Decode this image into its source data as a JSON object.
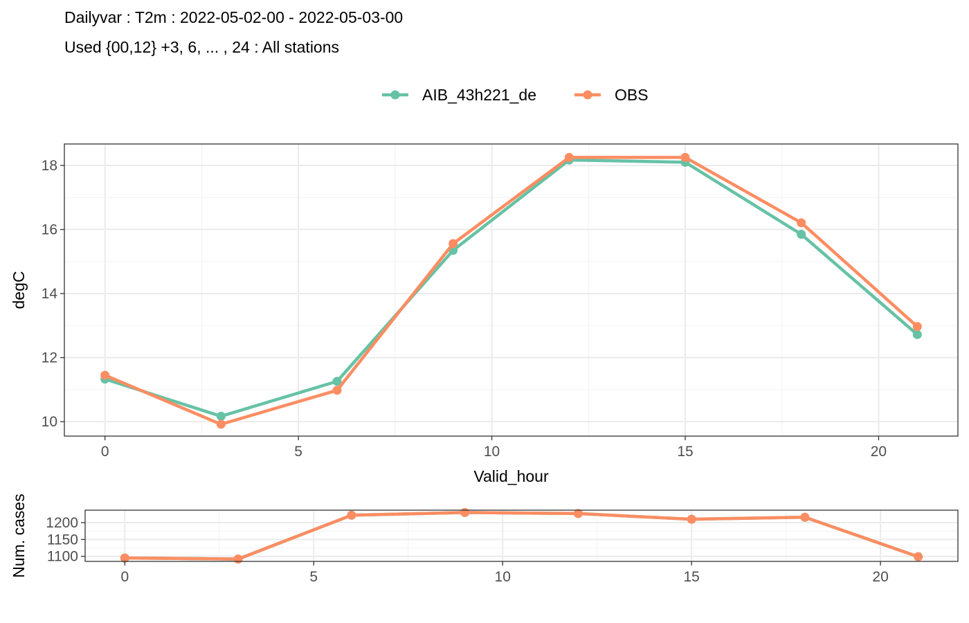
{
  "header": {
    "title": "Dailyvar : T2m : 2022-05-02-00 - 2022-05-03-00",
    "subtitle": "Used {00,12} +3, 6, ... , 24 : All stations"
  },
  "colors": {
    "AIB_43h221_de": "#66c2a5",
    "OBS": "#fc8d62"
  },
  "chart_data": [
    {
      "type": "line",
      "xlabel": "Valid_hour",
      "ylabel": "degC",
      "x": [
        0,
        3,
        6,
        9,
        12,
        15,
        18,
        21
      ],
      "xlim": [
        -1.05,
        22.05
      ],
      "ylim": [
        9.55,
        18.67
      ],
      "xticks": [
        0,
        5,
        10,
        15,
        20
      ],
      "yticks": [
        10,
        12,
        14,
        16,
        18
      ],
      "grid": true,
      "legend_position": "top",
      "series": [
        {
          "name": "AIB_43h221_de",
          "values": [
            11.33,
            10.17,
            11.26,
            15.35,
            18.17,
            18.1,
            15.85,
            12.72
          ]
        },
        {
          "name": "OBS",
          "values": [
            11.45,
            9.92,
            10.98,
            15.56,
            18.25,
            18.25,
            16.21,
            12.97
          ]
        }
      ]
    },
    {
      "type": "line",
      "xlabel": "",
      "ylabel": "Num. cases",
      "x": [
        0,
        3,
        6,
        9,
        12,
        15,
        18,
        21
      ],
      "xlim": [
        -1.05,
        22.05
      ],
      "ylim": [
        1085,
        1237
      ],
      "xticks": [
        0,
        5,
        10,
        15,
        20
      ],
      "yticks": [
        1100,
        1150,
        1200
      ],
      "grid": true,
      "series": [
        {
          "name": "AIB_43h221_de",
          "values": [
            1095,
            1092,
            1222,
            1230,
            1227,
            1210,
            1216,
            1099
          ]
        },
        {
          "name": "OBS",
          "values": [
            1095,
            1092,
            1222,
            1230,
            1227,
            1210,
            1216,
            1099
          ]
        }
      ]
    }
  ]
}
